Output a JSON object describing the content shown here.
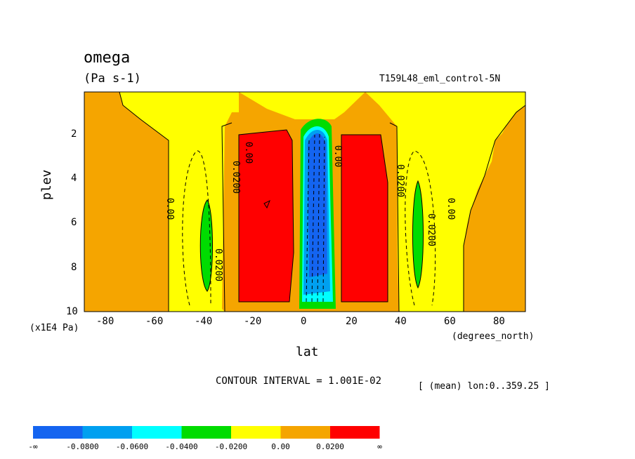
{
  "chart_data": {
    "type": "contour",
    "title": "omega",
    "units": "(Pa s-1)",
    "dataset": "T159L48_eml_control-5N",
    "xlabel": "lat",
    "xunits": "(degrees_north)",
    "ylabel": "plev",
    "yunits": "(x1E4 Pa)",
    "xlim": [
      -90,
      90
    ],
    "ylim": [
      10,
      0.2
    ],
    "xticks": [
      "-80",
      "-60",
      "-40",
      "-20",
      "0",
      "20",
      "40",
      "60",
      "80"
    ],
    "yticks": [
      "2",
      "4",
      "6",
      "8",
      "10"
    ],
    "contour_interval": "CONTOUR INTERVAL = 1.001E-02",
    "averaging": "[ (mean) lon:0..359.25 ]",
    "contour_labels": [
      "0.00",
      "0.0200",
      "0.0200",
      "0.00",
      "0.00",
      "0.0200",
      "0.0200",
      "0.00"
    ],
    "colorbar": {
      "colors": [
        "#1464f0",
        "#00a0f0",
        "#00ffff",
        "#00dc00",
        "#ffff00",
        "#f5a500",
        "#ff0000"
      ],
      "labels": [
        "-∞",
        "-0.0800",
        "-0.0600",
        "-0.0400",
        "-0.0200",
        "0.00",
        "0.0200",
        "∞"
      ]
    }
  }
}
